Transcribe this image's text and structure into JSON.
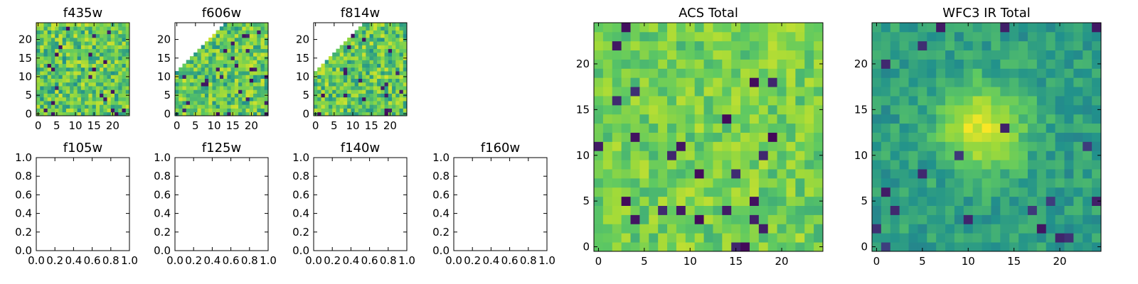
{
  "chart_data": [
    {
      "type": "heatmap",
      "title": "f435w",
      "xlim": [
        -0.5,
        24.5
      ],
      "ylim": [
        -0.5,
        24.5
      ],
      "xticks": [
        0,
        5,
        10,
        15,
        20
      ],
      "yticks": [
        0,
        5,
        10,
        15,
        20
      ],
      "xtick_labels": [
        "0",
        "5",
        "10",
        "15",
        "20"
      ],
      "ytick_labels": [
        "0",
        "5",
        "10",
        "15",
        "20"
      ],
      "colormap": "viridis",
      "grid_size": [
        25,
        25
      ],
      "masked_region": "none",
      "has_data": true
    },
    {
      "type": "heatmap",
      "title": "f606w",
      "xlim": [
        -0.5,
        24.5
      ],
      "ylim": [
        -0.5,
        24.5
      ],
      "xticks": [
        0,
        5,
        10,
        15,
        20
      ],
      "yticks": [
        0,
        5,
        10,
        15,
        20
      ],
      "xtick_labels": [
        "0",
        "5",
        "10",
        "15",
        "20"
      ],
      "ytick_labels": [
        "0",
        "5",
        "10",
        "15",
        "20"
      ],
      "colormap": "viridis",
      "grid_size": [
        25,
        25
      ],
      "masked_region": "upper-left triangle (no data)",
      "has_data": true
    },
    {
      "type": "heatmap",
      "title": "f814w",
      "xlim": [
        -0.5,
        24.5
      ],
      "ylim": [
        -0.5,
        24.5
      ],
      "xticks": [
        0,
        5,
        10,
        15,
        20
      ],
      "yticks": [
        0,
        5,
        10,
        15,
        20
      ],
      "xtick_labels": [
        "0",
        "5",
        "10",
        "15",
        "20"
      ],
      "ytick_labels": [
        "0",
        "5",
        "10",
        "15",
        "20"
      ],
      "colormap": "viridis",
      "grid_size": [
        25,
        25
      ],
      "masked_region": "upper-left triangle (no data)",
      "has_data": true
    },
    {
      "type": "heatmap",
      "title": "f105w",
      "xlim": [
        0,
        1
      ],
      "ylim": [
        0,
        1
      ],
      "xticks": [
        0,
        0.2,
        0.4,
        0.6,
        0.8,
        1.0
      ],
      "yticks": [
        0,
        0.2,
        0.4,
        0.6,
        0.8,
        1.0
      ],
      "xtick_labels": [
        "0.0",
        "0.2",
        "0.4",
        "0.6",
        "0.8",
        "1.0"
      ],
      "ytick_labels": [
        "0.0",
        "0.2",
        "0.4",
        "0.6",
        "0.8",
        "1.0"
      ],
      "has_data": false
    },
    {
      "type": "heatmap",
      "title": "f125w",
      "xlim": [
        0,
        1
      ],
      "ylim": [
        0,
        1
      ],
      "xticks": [
        0,
        0.2,
        0.4,
        0.6,
        0.8,
        1.0
      ],
      "yticks": [
        0,
        0.2,
        0.4,
        0.6,
        0.8,
        1.0
      ],
      "xtick_labels": [
        "0.0",
        "0.2",
        "0.4",
        "0.6",
        "0.8",
        "1.0"
      ],
      "ytick_labels": [
        "0.0",
        "0.2",
        "0.4",
        "0.6",
        "0.8",
        "1.0"
      ],
      "has_data": false
    },
    {
      "type": "heatmap",
      "title": "f140w",
      "xlim": [
        0,
        1
      ],
      "ylim": [
        0,
        1
      ],
      "xticks": [
        0,
        0.2,
        0.4,
        0.6,
        0.8,
        1.0
      ],
      "yticks": [
        0,
        0.2,
        0.4,
        0.6,
        0.8,
        1.0
      ],
      "xtick_labels": [
        "0.0",
        "0.2",
        "0.4",
        "0.6",
        "0.8",
        "1.0"
      ],
      "ytick_labels": [
        "0.0",
        "0.2",
        "0.4",
        "0.6",
        "0.8",
        "1.0"
      ],
      "has_data": false
    },
    {
      "type": "heatmap",
      "title": "f160w",
      "xlim": [
        0,
        1
      ],
      "ylim": [
        0,
        1
      ],
      "xticks": [
        0,
        0.2,
        0.4,
        0.6,
        0.8,
        1.0
      ],
      "yticks": [
        0,
        0.2,
        0.4,
        0.6,
        0.8,
        1.0
      ],
      "xtick_labels": [
        "0.0",
        "0.2",
        "0.4",
        "0.6",
        "0.8",
        "1.0"
      ],
      "ytick_labels": [
        "0.0",
        "0.2",
        "0.4",
        "0.6",
        "0.8",
        "1.0"
      ],
      "has_data": false
    },
    {
      "type": "heatmap",
      "title": "ACS Total",
      "xlim": [
        -0.5,
        24.5
      ],
      "ylim": [
        -0.5,
        24.5
      ],
      "xticks": [
        0,
        5,
        10,
        15,
        20
      ],
      "yticks": [
        0,
        5,
        10,
        15,
        20
      ],
      "xtick_labels": [
        "0",
        "5",
        "10",
        "15",
        "20"
      ],
      "ytick_labels": [
        "0",
        "5",
        "10",
        "15",
        "20"
      ],
      "colormap": "viridis",
      "grid_size": [
        25,
        25
      ],
      "masked_region": "none",
      "has_data": true
    },
    {
      "type": "heatmap",
      "title": "WFC3 IR Total",
      "xlim": [
        -0.5,
        24.5
      ],
      "ylim": [
        -0.5,
        24.5
      ],
      "xticks": [
        0,
        5,
        10,
        15,
        20
      ],
      "yticks": [
        0,
        5,
        10,
        15,
        20
      ],
      "xtick_labels": [
        "0",
        "5",
        "10",
        "15",
        "20"
      ],
      "ytick_labels": [
        "0",
        "5",
        "10",
        "15",
        "20"
      ],
      "colormap": "viridis",
      "grid_size": [
        25,
        25
      ],
      "masked_region": "none",
      "has_data": true,
      "feature": "bright peak near x=11-12, y=13"
    }
  ]
}
